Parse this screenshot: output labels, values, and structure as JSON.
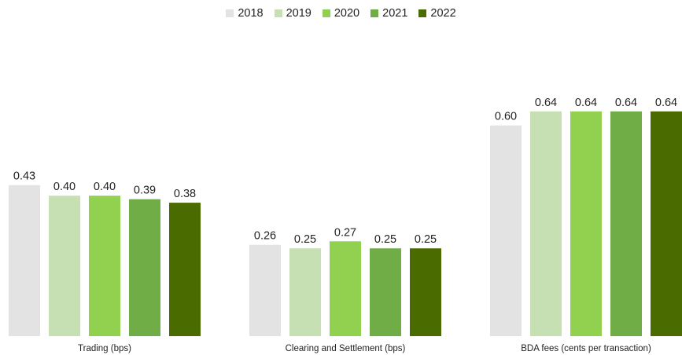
{
  "chart_data": {
    "type": "bar",
    "categories": [
      "Trading (bps)",
      "Clearing and Settlement (bps)",
      "BDA fees (cents per transaction)"
    ],
    "series": [
      {
        "name": "2018",
        "color": "#e3e3e3",
        "values": [
          0.43,
          0.26,
          0.6
        ],
        "labels": [
          "0.43",
          "0.26",
          "0.60"
        ]
      },
      {
        "name": "2019",
        "color": "#c6e0b4",
        "values": [
          0.4,
          0.25,
          0.64
        ],
        "labels": [
          "0.40",
          "0.25",
          "0.64"
        ]
      },
      {
        "name": "2020",
        "color": "#92d050",
        "values": [
          0.4,
          0.27,
          0.64
        ],
        "labels": [
          "0.40",
          "0.27",
          "0.64"
        ]
      },
      {
        "name": "2021",
        "color": "#70ad47",
        "values": [
          0.39,
          0.25,
          0.64
        ],
        "labels": [
          "0.39",
          "0.25",
          "0.64"
        ]
      },
      {
        "name": "2022",
        "color": "#4a6b00",
        "values": [
          0.38,
          0.25,
          0.64
        ],
        "labels": [
          "0.38",
          "0.25",
          "0.64"
        ]
      }
    ],
    "title": "",
    "xlabel": "",
    "ylabel": "",
    "ylim": [
      0,
      0.7
    ],
    "grid": false,
    "legend_position": "top-center"
  }
}
